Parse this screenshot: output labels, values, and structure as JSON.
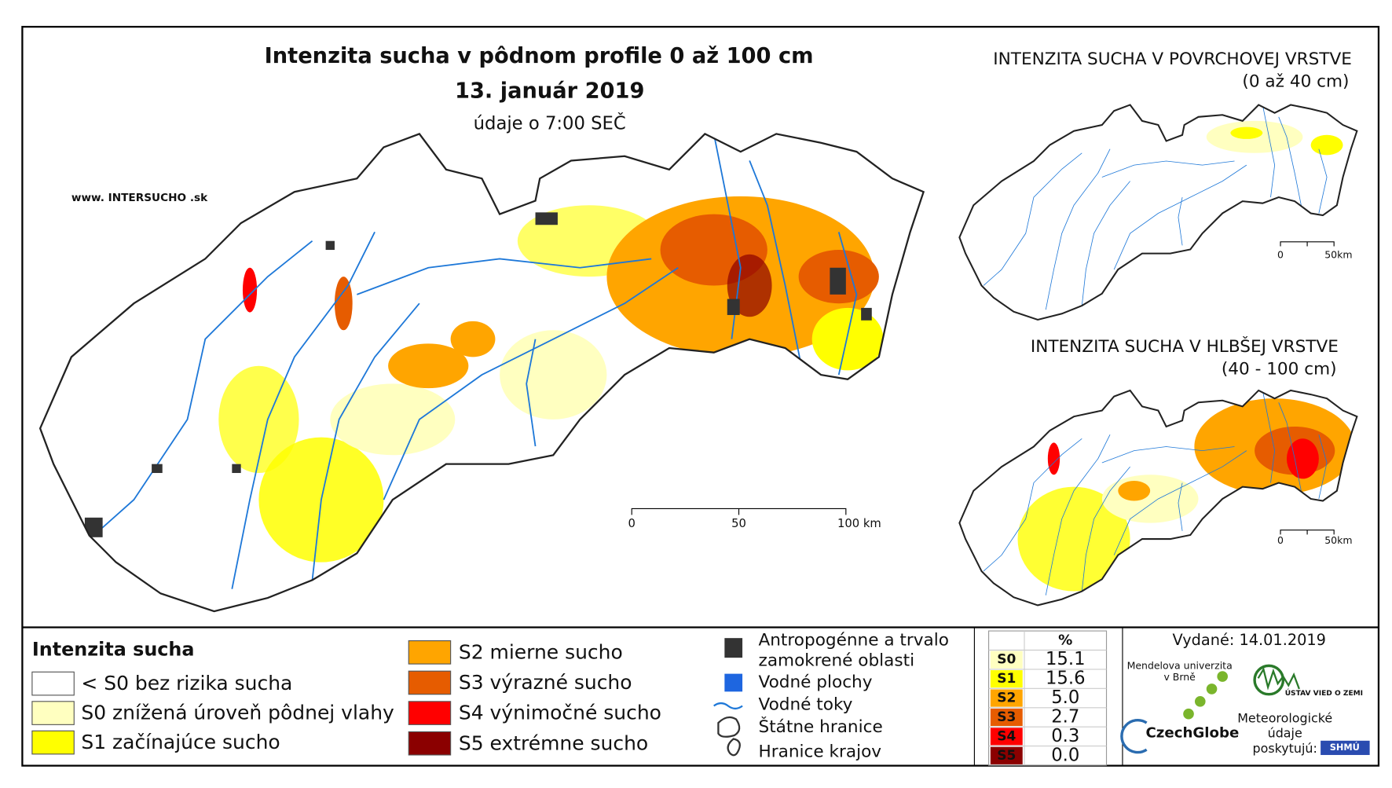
{
  "main_map": {
    "title": "Intenzita sucha v pôdnom profile 0 až 100 cm",
    "date": "13. január 2019",
    "subtitle": "údaje o 7:00 SEČ",
    "website": "www. INTERSUCHO .sk",
    "scale": [
      "0",
      "50",
      "100 km"
    ]
  },
  "surface_map": {
    "title": "INTENZITA SUCHA V POVRCHOVEJ VRSTVE",
    "subtitle": "(0 až 40 cm)",
    "scale": [
      "0",
      "50km"
    ]
  },
  "deep_map": {
    "title": "INTENZITA SUCHA V HLBŠEJ VRSTVE",
    "subtitle": "(40 - 100 cm)",
    "scale": [
      "0",
      "50km"
    ]
  },
  "legend": {
    "title": "Intenzita sucha",
    "items": [
      {
        "label": "< S0 bez rizika sucha",
        "color": "#ffffff"
      },
      {
        "label": "S0 znížená úroveň pôdnej vlahy",
        "color": "#ffffc0"
      },
      {
        "label": "S1 začínajúce sucho",
        "color": "#ffff00"
      },
      {
        "label": "S2 mierne sucho",
        "color": "#ffa500"
      },
      {
        "label": "S3 výrazné sucho",
        "color": "#e65c00"
      },
      {
        "label": "S4 výnimočné sucho",
        "color": "#ff0000"
      },
      {
        "label": "S5 extrémne sucho",
        "color": "#8b0000"
      }
    ]
  },
  "symbols": {
    "items": [
      "Antropogénne a trvalo zamokrené oblasti",
      "Vodné plochy",
      "Vodné toky",
      "Štátne hranice",
      "Hranice krajov"
    ]
  },
  "stats": {
    "header": "%",
    "rows": [
      {
        "class": "S0",
        "value": "15.1",
        "color": "#ffffc0"
      },
      {
        "class": "S1",
        "value": "15.6",
        "color": "#ffff00"
      },
      {
        "class": "S2",
        "value": "5.0",
        "color": "#ffa500"
      },
      {
        "class": "S3",
        "value": "2.7",
        "color": "#e65c00"
      },
      {
        "class": "S4",
        "value": "0.3",
        "color": "#ff0000"
      },
      {
        "class": "S5",
        "value": "0.0",
        "color": "#8b0000"
      }
    ]
  },
  "footer": {
    "issued": "Vydané: 14.01.2019",
    "university": "Mendelova univerzita v Brně",
    "czechglobe": "CzechGlobe",
    "institute": "ÚSTAV VIED O ZEMI",
    "provider": "Meteorologické údaje poskytujú:",
    "shmu": "SHMÚ"
  }
}
